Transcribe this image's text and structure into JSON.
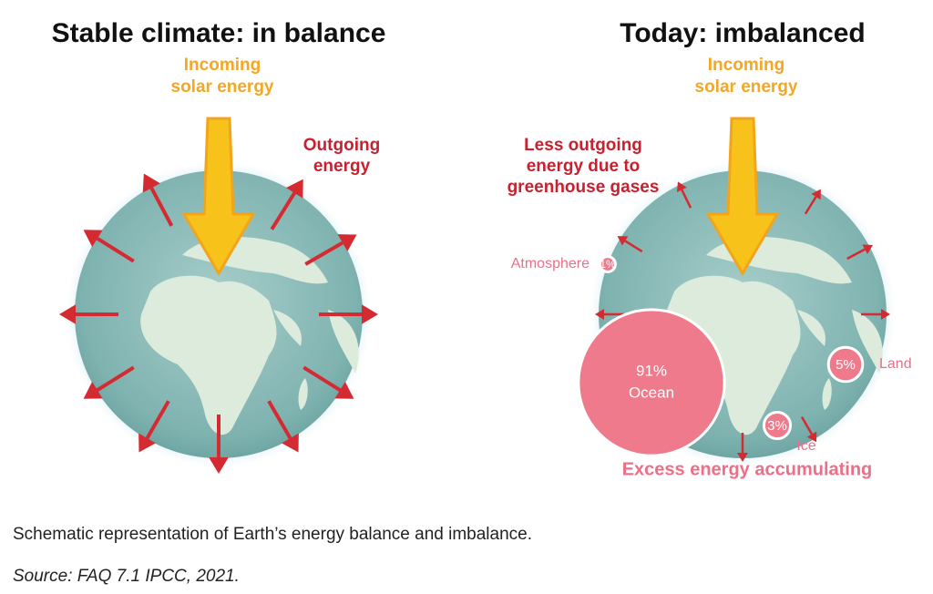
{
  "panels": [
    {
      "title": "Stable climate: in balance",
      "incoming": [
        "Incoming",
        "solar energy"
      ],
      "outgoing": [
        "Outgoing",
        "energy"
      ]
    },
    {
      "title": "Today: imbalanced",
      "incoming": [
        "Incoming",
        "solar energy"
      ],
      "outgoing": [
        "Less outgoing",
        "energy due to",
        "greenhouse gases"
      ],
      "shares": [
        {
          "name": "Atmosphere",
          "value": 1,
          "label": "1%"
        },
        {
          "name": "Ocean",
          "value": 91,
          "label": "91%"
        },
        {
          "name": "Land",
          "value": 5,
          "label": "5%"
        },
        {
          "name": "Ice",
          "value": 3,
          "label": "3%"
        }
      ],
      "footer": "Excess energy accumulating"
    }
  ],
  "caption": "Schematic representation of Earth’s energy balance and imbalance.",
  "source": "Source: FAQ 7.1 IPCC, 2021."
}
